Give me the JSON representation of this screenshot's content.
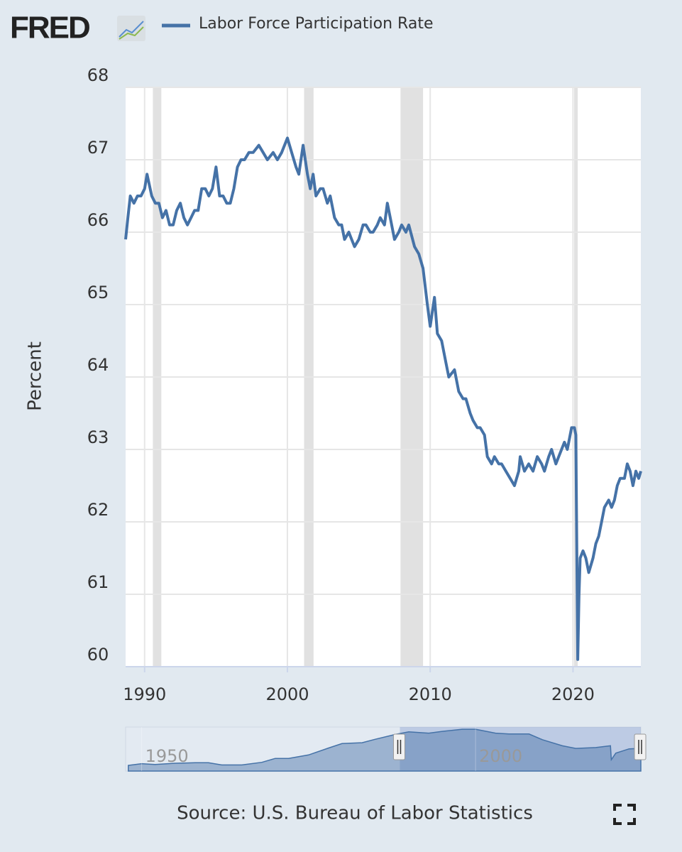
{
  "logo": "FRED",
  "chart_data": {
    "type": "line",
    "series": [
      {
        "name": "Labor Force Participation Rate",
        "color": "#4572a7",
        "x": [
          1988.67,
          1988.83,
          1989.0,
          1989.25,
          1989.5,
          1989.75,
          1990.0,
          1990.17,
          1990.5,
          1990.75,
          1991.0,
          1991.25,
          1991.5,
          1991.75,
          1992.0,
          1992.25,
          1992.5,
          1992.75,
          1993.0,
          1993.25,
          1993.5,
          1993.75,
          1994.0,
          1994.25,
          1994.5,
          1994.75,
          1995.0,
          1995.25,
          1995.5,
          1995.75,
          1996.0,
          1996.25,
          1996.5,
          1996.75,
          1997.0,
          1997.3,
          1997.6,
          1998.0,
          1998.3,
          1998.6,
          1999.0,
          1999.3,
          1999.6,
          2000.0,
          2000.3,
          2000.6,
          2000.8,
          2001.1,
          2001.4,
          2001.6,
          2001.8,
          2002.0,
          2002.3,
          2002.5,
          2002.8,
          2003.0,
          2003.3,
          2003.6,
          2003.8,
          2004.0,
          2004.3,
          2004.5,
          2004.7,
          2005.0,
          2005.3,
          2005.5,
          2005.8,
          2006.0,
          2006.3,
          2006.5,
          2006.8,
          2007.0,
          2007.2,
          2007.5,
          2007.8,
          2008.0,
          2008.3,
          2008.5,
          2008.9,
          2009.2,
          2009.5,
          2009.8,
          2010.0,
          2010.3,
          2010.5,
          2010.8,
          2011.1,
          2011.3,
          2011.7,
          2012.0,
          2012.3,
          2012.5,
          2012.8,
          2013.0,
          2013.3,
          2013.5,
          2013.8,
          2014.0,
          2014.3,
          2014.5,
          2014.8,
          2015.0,
          2015.3,
          2015.6,
          2015.9,
          2016.2,
          2016.3,
          2016.6,
          2016.9,
          2017.2,
          2017.5,
          2017.8,
          2018.0,
          2018.3,
          2018.5,
          2018.8,
          2019.0,
          2019.4,
          2019.6,
          2019.8,
          2019.9,
          2020.1,
          2020.2,
          2020.33,
          2020.42,
          2020.5,
          2020.7,
          2020.9,
          2021.1,
          2021.4,
          2021.6,
          2021.8,
          2022.0,
          2022.2,
          2022.5,
          2022.7,
          2022.9,
          2023.1,
          2023.3,
          2023.6,
          2023.8,
          2024.0,
          2024.2,
          2024.4,
          2024.6,
          2024.75
        ],
        "values": [
          65.9,
          66.2,
          66.5,
          66.4,
          66.5,
          66.5,
          66.6,
          66.8,
          66.5,
          66.4,
          66.4,
          66.2,
          66.3,
          66.1,
          66.1,
          66.3,
          66.4,
          66.2,
          66.1,
          66.2,
          66.3,
          66.3,
          66.6,
          66.6,
          66.5,
          66.6,
          66.9,
          66.5,
          66.5,
          66.4,
          66.4,
          66.6,
          66.9,
          67.0,
          67.0,
          67.1,
          67.1,
          67.2,
          67.1,
          67.0,
          67.1,
          67.0,
          67.1,
          67.3,
          67.1,
          66.9,
          66.8,
          67.2,
          66.8,
          66.6,
          66.8,
          66.5,
          66.6,
          66.6,
          66.4,
          66.5,
          66.2,
          66.1,
          66.1,
          65.9,
          66.0,
          65.9,
          65.8,
          65.9,
          66.1,
          66.1,
          66.0,
          66.0,
          66.1,
          66.2,
          66.1,
          66.4,
          66.2,
          65.9,
          66.0,
          66.1,
          66.0,
          66.1,
          65.8,
          65.7,
          65.5,
          65.0,
          64.7,
          65.1,
          64.6,
          64.5,
          64.2,
          64.0,
          64.1,
          63.8,
          63.7,
          63.7,
          63.5,
          63.4,
          63.3,
          63.3,
          63.2,
          62.9,
          62.8,
          62.9,
          62.8,
          62.8,
          62.7,
          62.6,
          62.5,
          62.7,
          62.9,
          62.7,
          62.8,
          62.7,
          62.9,
          62.8,
          62.7,
          62.9,
          63.0,
          62.8,
          62.9,
          63.1,
          63.0,
          63.2,
          63.3,
          63.3,
          63.2,
          60.1,
          61.0,
          61.5,
          61.6,
          61.5,
          61.3,
          61.5,
          61.7,
          61.8,
          62.0,
          62.2,
          62.3,
          62.2,
          62.3,
          62.5,
          62.6,
          62.6,
          62.8,
          62.7,
          62.5,
          62.7,
          62.6,
          62.7
        ]
      }
    ],
    "xlim": [
      1988.67,
      2024.75
    ],
    "xticks": [
      1990,
      2000,
      2010,
      2020
    ],
    "ylim": [
      60,
      68
    ],
    "yticks": [
      60,
      61,
      62,
      63,
      64,
      65,
      66,
      67,
      68
    ],
    "ylabel": "Percent",
    "grid": true,
    "recessions": [
      [
        1990.58,
        1991.17
      ],
      [
        2001.17,
        2001.83
      ],
      [
        2007.92,
        2009.5
      ],
      [
        2020.08,
        2020.33
      ]
    ],
    "navigator": {
      "type": "area",
      "x": [
        1948,
        1950,
        1952,
        1955,
        1958,
        1960,
        1962,
        1965,
        1968,
        1970,
        1972,
        1975,
        1978,
        1980,
        1983,
        1985,
        1988,
        1990,
        1993,
        1995,
        1998,
        2000,
        2003,
        2005,
        2008,
        2010,
        2013,
        2015,
        2018,
        2020.2,
        2020.33,
        2021,
        2023,
        2024.75
      ],
      "values": [
        58.8,
        59.2,
        59.0,
        59.3,
        59.4,
        59.4,
        58.9,
        58.9,
        59.5,
        60.4,
        60.4,
        61.2,
        62.8,
        63.8,
        64.0,
        64.8,
        65.9,
        66.5,
        66.2,
        66.6,
        67.1,
        67.1,
        66.2,
        66.0,
        66.0,
        64.7,
        63.3,
        62.7,
        62.9,
        63.3,
        60.1,
        61.6,
        62.6,
        62.7
      ],
      "xlim": [
        1947.6,
        2024.75
      ],
      "ylim": [
        57.5,
        67.6
      ],
      "xticks": [
        1950,
        2000
      ]
    },
    "source": "Source: U.S. Bureau of Labor Statistics"
  }
}
